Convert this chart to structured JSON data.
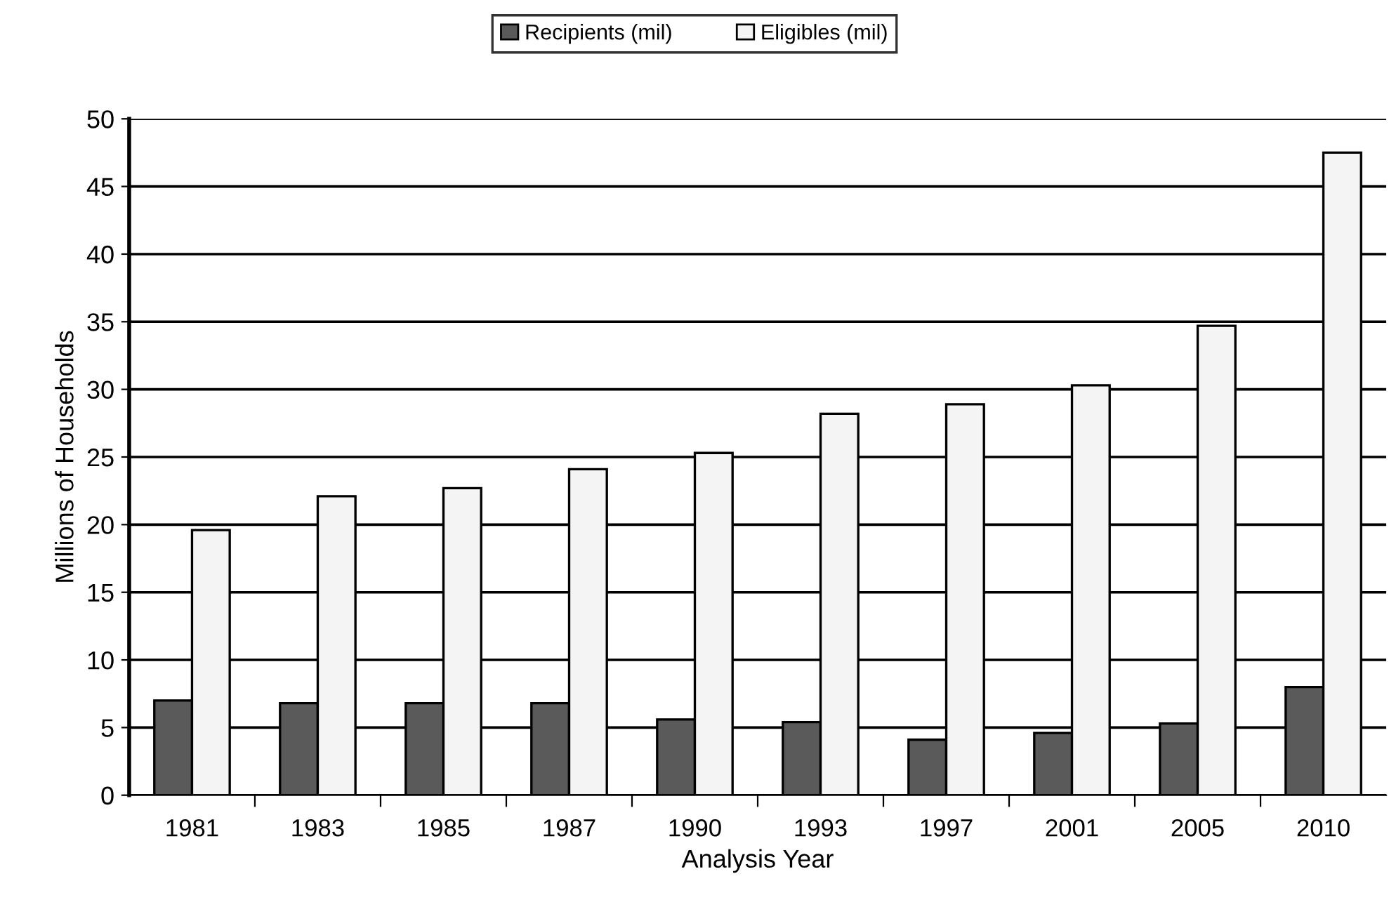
{
  "chart_data": {
    "type": "bar",
    "xlabel": "Analysis Year",
    "ylabel": "Millions of Households",
    "categories": [
      "1981",
      "1983",
      "1985",
      "1987",
      "1990",
      "1993",
      "1997",
      "2001",
      "2005",
      "2010"
    ],
    "series": [
      {
        "name": "Recipients (mil)",
        "color": "#5a5a5a",
        "values": [
          7.0,
          6.8,
          6.8,
          6.8,
          5.6,
          5.4,
          4.1,
          4.6,
          5.3,
          8.0
        ]
      },
      {
        "name": "Eligibles (mil)",
        "color": "#f4f4f4",
        "values": [
          19.6,
          22.1,
          22.7,
          24.1,
          25.3,
          28.2,
          28.9,
          30.3,
          34.7,
          47.5
        ]
      }
    ],
    "ylim": [
      0,
      50
    ],
    "yticks": [
      0,
      5,
      10,
      15,
      20,
      25,
      30,
      35,
      40,
      45,
      50
    ],
    "grid": "y",
    "legend": "top"
  }
}
